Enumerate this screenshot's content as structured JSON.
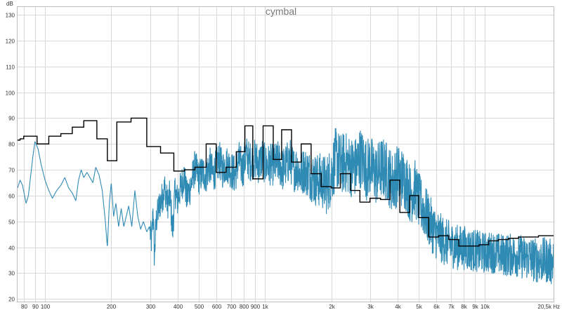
{
  "chart_data": {
    "type": "line",
    "title": "cymbal",
    "ylabel": "dB",
    "xlabel": "",
    "x_unit": "Hz",
    "x_scale": "log",
    "xlim": [
      75,
      20500
    ],
    "ylim": [
      19,
      133
    ],
    "grid": true,
    "y_ticks": [
      20,
      30,
      40,
      50,
      60,
      70,
      80,
      90,
      100,
      110,
      120,
      130
    ],
    "x_ticks": [
      {
        "value": 80,
        "label": "80"
      },
      {
        "value": 90,
        "label": "90"
      },
      {
        "value": 100,
        "label": "100"
      },
      {
        "value": 200,
        "label": "200"
      },
      {
        "value": 300,
        "label": "300"
      },
      {
        "value": 400,
        "label": "400"
      },
      {
        "value": 500,
        "label": "500"
      },
      {
        "value": 600,
        "label": "600"
      },
      {
        "value": 700,
        "label": "700"
      },
      {
        "value": 800,
        "label": "800"
      },
      {
        "value": 900,
        "label": "900"
      },
      {
        "value": 1000,
        "label": "1k"
      },
      {
        "value": 2000,
        "label": "2k"
      },
      {
        "value": 3000,
        "label": "3k"
      },
      {
        "value": 4000,
        "label": "4k"
      },
      {
        "value": 5000,
        "label": "5k"
      },
      {
        "value": 6000,
        "label": "6k"
      },
      {
        "value": 7000,
        "label": "7k"
      },
      {
        "value": 8000,
        "label": "8k"
      },
      {
        "value": 9000,
        "label": "9k"
      },
      {
        "value": 10000,
        "label": "10k"
      },
      {
        "value": 20500,
        "label": "20,5k Hz"
      }
    ],
    "series": [
      {
        "color": "#2f8ab4",
        "style": "spectrum",
        "points": [
          [
            75,
            63
          ],
          [
            77,
            66
          ],
          [
            79,
            64
          ],
          [
            82,
            57
          ],
          [
            84,
            60
          ],
          [
            88,
            75
          ],
          [
            90,
            81
          ],
          [
            93,
            78
          ],
          [
            96,
            72
          ],
          [
            100,
            66
          ],
          [
            104,
            62
          ],
          [
            108,
            59
          ],
          [
            113,
            62
          ],
          [
            118,
            64
          ],
          [
            123,
            67
          ],
          [
            128,
            63
          ],
          [
            133,
            61
          ],
          [
            138,
            58
          ],
          [
            142,
            66
          ],
          [
            146,
            70
          ],
          [
            150,
            67
          ],
          [
            155,
            69
          ],
          [
            160,
            67
          ],
          [
            165,
            65
          ],
          [
            170,
            71
          ],
          [
            176,
            68
          ],
          [
            182,
            62
          ],
          [
            188,
            50
          ],
          [
            192,
            40
          ],
          [
            196,
            57
          ],
          [
            200,
            65
          ],
          [
            205,
            52
          ],
          [
            210,
            57
          ],
          [
            216,
            48
          ],
          [
            222,
            55
          ],
          [
            228,
            48
          ],
          [
            234,
            52
          ],
          [
            240,
            56
          ],
          [
            248,
            48
          ],
          [
            256,
            62
          ],
          [
            264,
            52
          ],
          [
            272,
            47
          ],
          [
            280,
            50
          ],
          [
            290,
            46
          ],
          [
            298,
            48
          ],
          [
            305,
            42
          ],
          [
            310,
            55
          ],
          [
            314,
            36
          ],
          [
            320,
            50
          ],
          [
            330,
            56
          ],
          [
            340,
            59
          ],
          [
            350,
            63
          ],
          [
            360,
            57
          ],
          [
            370,
            60
          ],
          [
            380,
            46
          ],
          [
            390,
            62
          ],
          [
            400,
            58
          ],
          [
            410,
            62
          ],
          [
            420,
            65
          ],
          [
            430,
            68
          ],
          [
            440,
            59
          ],
          [
            460,
            64
          ],
          [
            480,
            71
          ],
          [
            500,
            67
          ],
          [
            520,
            69
          ],
          [
            540,
            68
          ],
          [
            560,
            72
          ],
          [
            580,
            68
          ],
          [
            600,
            71
          ],
          [
            620,
            74
          ],
          [
            640,
            70
          ],
          [
            660,
            72
          ],
          [
            680,
            72
          ],
          [
            700,
            70
          ],
          [
            730,
            68
          ],
          [
            760,
            74
          ],
          [
            790,
            70
          ],
          [
            820,
            76
          ],
          [
            850,
            73
          ],
          [
            880,
            74
          ],
          [
            910,
            74
          ],
          [
            940,
            72
          ],
          [
            970,
            75
          ],
          [
            1000,
            72
          ],
          [
            1050,
            72
          ],
          [
            1100,
            72
          ],
          [
            1150,
            73
          ],
          [
            1200,
            70
          ],
          [
            1250,
            72
          ],
          [
            1300,
            74
          ],
          [
            1350,
            70
          ],
          [
            1400,
            71
          ],
          [
            1450,
            68
          ],
          [
            1500,
            70
          ],
          [
            1600,
            68
          ],
          [
            1700,
            66
          ],
          [
            1800,
            66
          ],
          [
            1900,
            64
          ],
          [
            2000,
            68
          ],
          [
            2100,
            75
          ],
          [
            2200,
            72
          ],
          [
            2300,
            73
          ],
          [
            2400,
            72
          ],
          [
            2500,
            71
          ],
          [
            2600,
            71
          ],
          [
            2700,
            75
          ],
          [
            2800,
            73
          ],
          [
            2900,
            70
          ],
          [
            3000,
            72
          ],
          [
            3200,
            68
          ],
          [
            3400,
            71
          ],
          [
            3600,
            69
          ],
          [
            3800,
            65
          ],
          [
            4000,
            68
          ],
          [
            4200,
            67
          ],
          [
            4400,
            65
          ],
          [
            4600,
            60
          ],
          [
            4800,
            63
          ],
          [
            5000,
            58
          ],
          [
            5300,
            54
          ],
          [
            5600,
            50
          ],
          [
            5900,
            46
          ],
          [
            6200,
            44
          ],
          [
            6600,
            42
          ],
          [
            7000,
            41
          ],
          [
            7500,
            40
          ],
          [
            8000,
            40
          ],
          [
            8500,
            39
          ],
          [
            9000,
            39
          ],
          [
            9500,
            38
          ],
          [
            10000,
            38
          ],
          [
            11000,
            38
          ],
          [
            12000,
            37
          ],
          [
            13000,
            37
          ],
          [
            14000,
            37
          ],
          [
            15000,
            36
          ],
          [
            16000,
            36
          ],
          [
            17000,
            35
          ],
          [
            18000,
            35
          ],
          [
            19000,
            35
          ],
          [
            20500,
            34
          ]
        ],
        "noise_bands": [
          [
            300,
            6
          ],
          [
            500,
            7
          ],
          [
            1000,
            8
          ],
          [
            1500,
            9
          ],
          [
            2000,
            12
          ],
          [
            3000,
            12
          ],
          [
            4000,
            12
          ],
          [
            5000,
            11
          ],
          [
            7000,
            9
          ],
          [
            10000,
            8
          ],
          [
            20500,
            9
          ]
        ]
      },
      {
        "color": "#000000",
        "style": "step",
        "points": [
          [
            75,
            81.5
          ],
          [
            77,
            82
          ],
          [
            80,
            83
          ],
          [
            92,
            80
          ],
          [
            104,
            83
          ],
          [
            118,
            84
          ],
          [
            133,
            86.5
          ],
          [
            150,
            89
          ],
          [
            172,
            82
          ],
          [
            192,
            73.5
          ],
          [
            212,
            88.5
          ],
          [
            246,
            90
          ],
          [
            290,
            79
          ],
          [
            335,
            76.5
          ],
          [
            385,
            69.5
          ],
          [
            430,
            70
          ],
          [
            480,
            71
          ],
          [
            540,
            80
          ],
          [
            600,
            69
          ],
          [
            665,
            71
          ],
          [
            740,
            77
          ],
          [
            810,
            87
          ],
          [
            880,
            66.5
          ],
          [
            980,
            87
          ],
          [
            1090,
            74
          ],
          [
            1190,
            85.5
          ],
          [
            1320,
            73
          ],
          [
            1460,
            80
          ],
          [
            1620,
            68.5
          ],
          [
            1800,
            63.5
          ],
          [
            2000,
            63
          ],
          [
            2200,
            68.5
          ],
          [
            2450,
            62
          ],
          [
            2700,
            57.5
          ],
          [
            3000,
            59
          ],
          [
            3350,
            58.5
          ],
          [
            3700,
            66
          ],
          [
            4100,
            53.5
          ],
          [
            4550,
            60
          ],
          [
            5000,
            51.5
          ],
          [
            5550,
            44
          ],
          [
            6150,
            44.5
          ],
          [
            6850,
            43
          ],
          [
            7600,
            40.5
          ],
          [
            8450,
            40.5
          ],
          [
            9400,
            41
          ],
          [
            10400,
            42.5
          ],
          [
            11500,
            43
          ],
          [
            12800,
            43.5
          ],
          [
            14200,
            44
          ],
          [
            15800,
            44
          ],
          [
            17500,
            44.5
          ],
          [
            19400,
            44.5
          ],
          [
            20500,
            44.5
          ]
        ]
      }
    ]
  }
}
